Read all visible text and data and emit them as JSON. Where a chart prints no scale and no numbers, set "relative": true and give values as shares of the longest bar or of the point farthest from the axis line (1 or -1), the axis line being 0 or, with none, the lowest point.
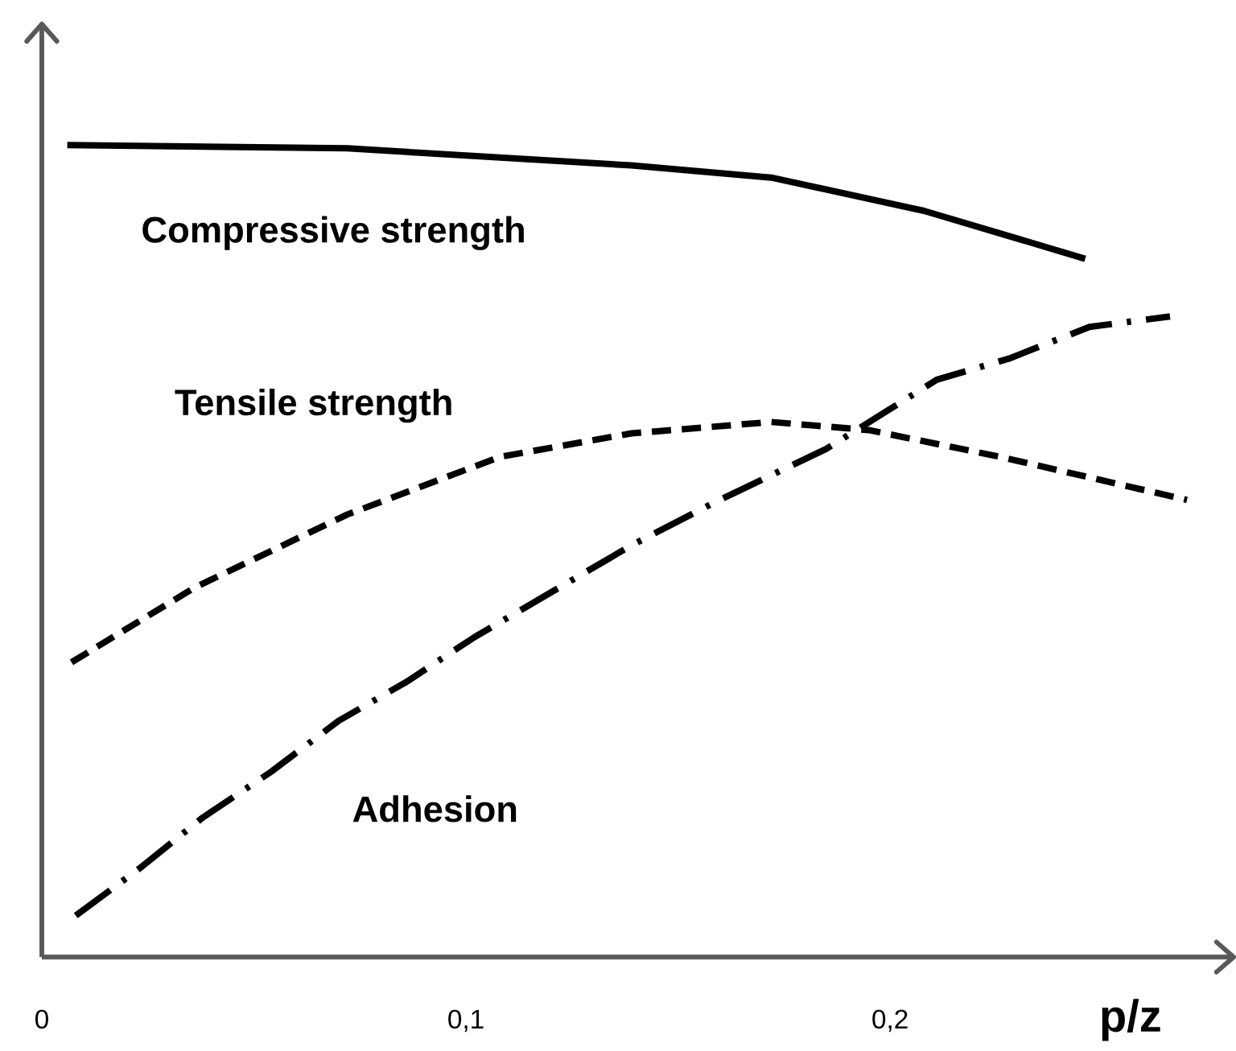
{
  "chart_data": {
    "type": "line",
    "relative": true,
    "xlabel": "p/z",
    "xlim": [
      0,
      0.281
    ],
    "xticks": [
      0,
      {
        "value": 0.1,
        "label": "0,1"
      },
      {
        "value": 0.2,
        "label": "0,2"
      }
    ],
    "tick_labels": "x",
    "grid": false,
    "marker": "none",
    "series": [
      {
        "name": "Compressive strength",
        "color": "#000000",
        "line_style": "solid",
        "x": [
          0.006,
          0.072,
          0.139,
          0.172,
          0.208,
          0.246
        ],
        "values": [
          1.0,
          0.996,
          0.975,
          0.96,
          0.919,
          0.86
        ]
      },
      {
        "name": "Tensile strength",
        "color": "#000000",
        "line_style": "dashed",
        "x": [
          0.007,
          0.036,
          0.072,
          0.108,
          0.139,
          0.172,
          0.195,
          0.226,
          0.27
        ],
        "values": [
          0.363,
          0.455,
          0.545,
          0.616,
          0.645,
          0.659,
          0.649,
          0.616,
          0.563
        ]
      },
      {
        "name": "Adhesion",
        "color": "#000000",
        "line_style": "dashdotted",
        "x": [
          0.008,
          0.023,
          0.038,
          0.054,
          0.07,
          0.086,
          0.102,
          0.139,
          0.159,
          0.185,
          0.211,
          0.228,
          0.247,
          0.266
        ],
        "values": [
          0.051,
          0.109,
          0.172,
          0.228,
          0.291,
          0.339,
          0.394,
          0.507,
          0.561,
          0.626,
          0.711,
          0.737,
          0.776,
          0.789
        ]
      }
    ]
  }
}
